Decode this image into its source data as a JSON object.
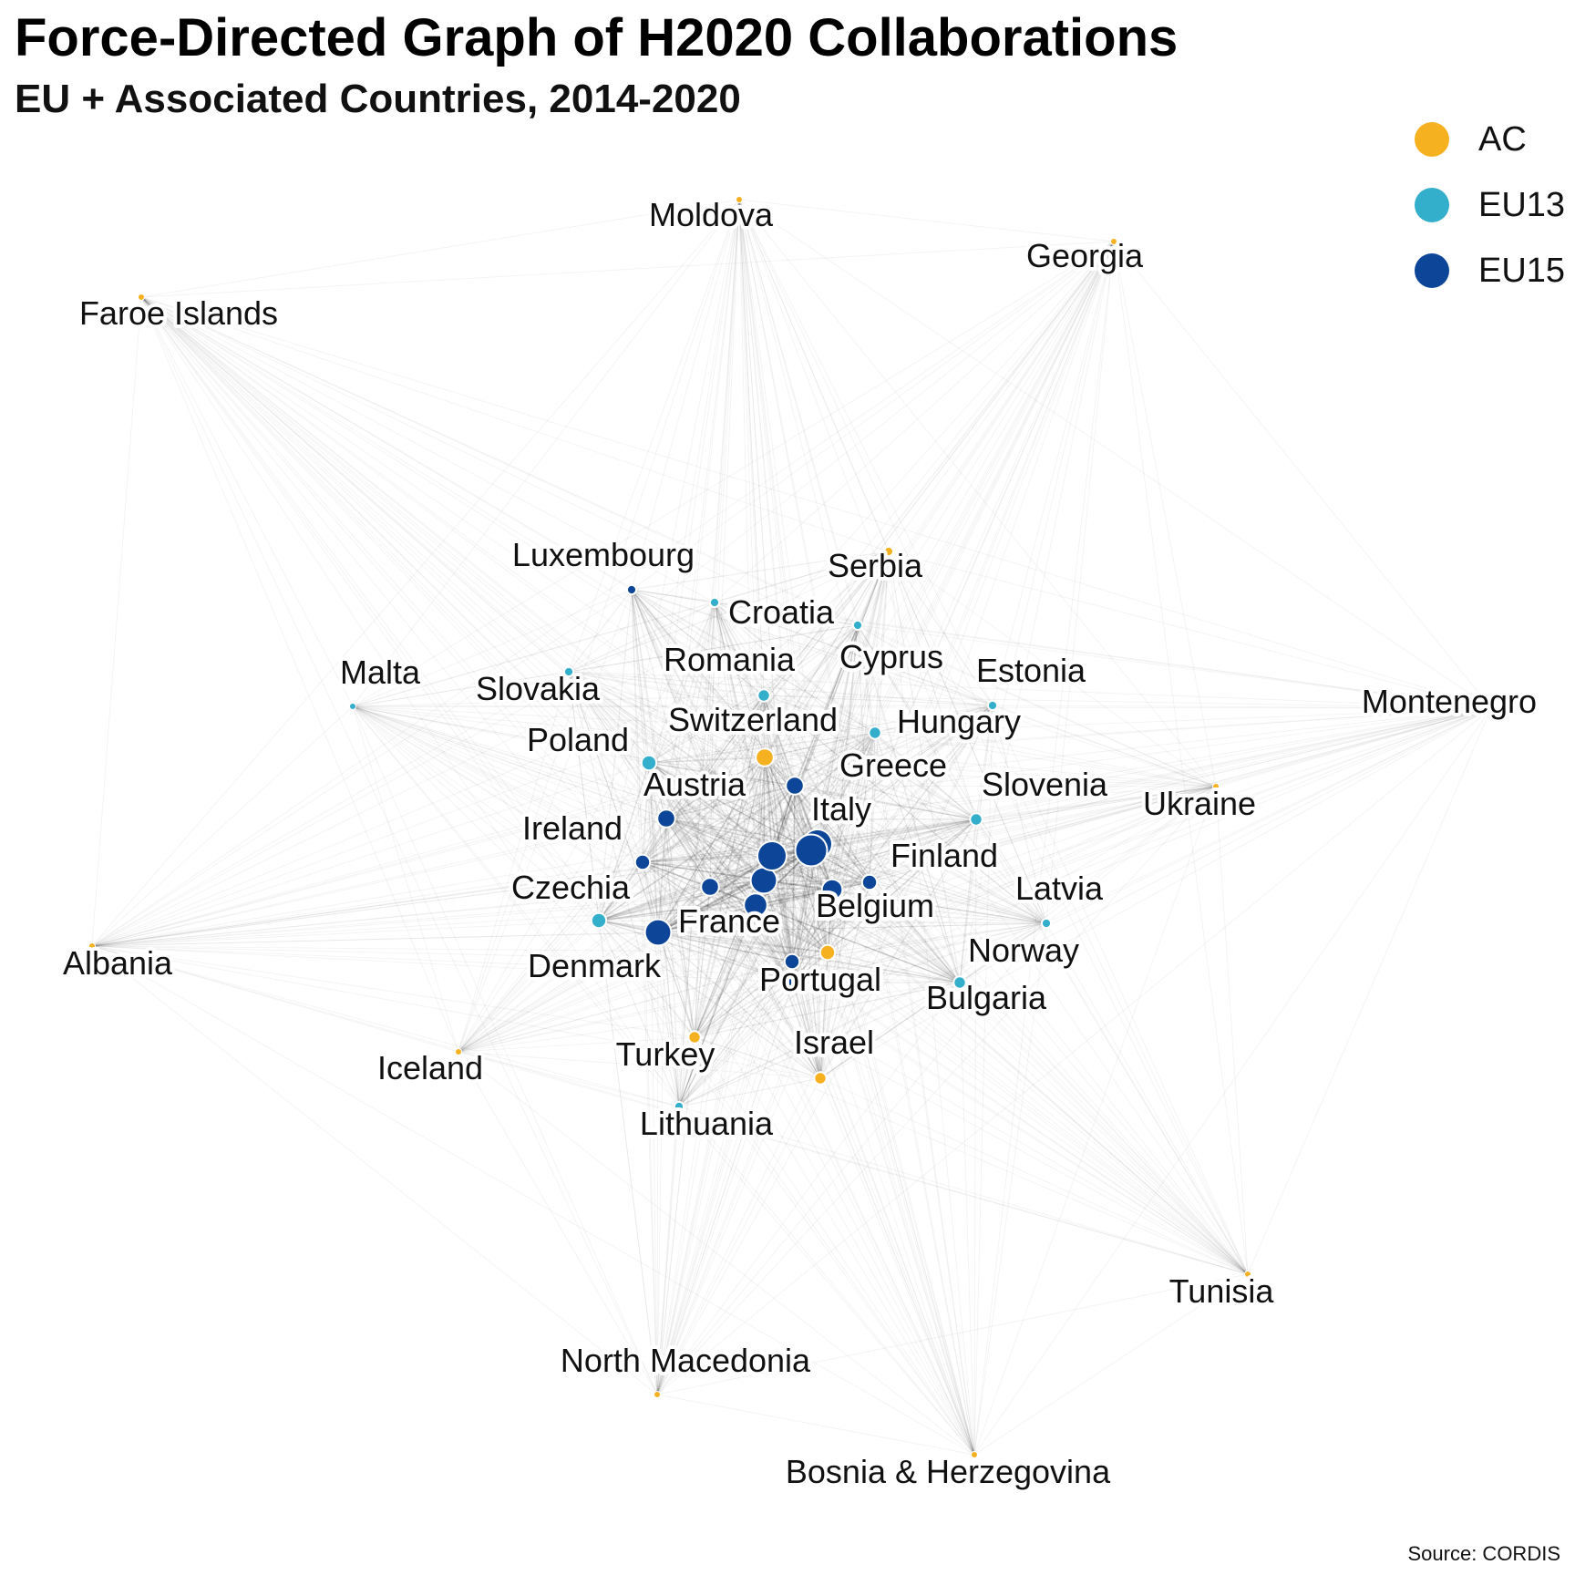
{
  "chart_data": {
    "type": "network",
    "title": "Force-Directed Graph of H2020 Collaborations",
    "subtitle": "EU + Associated Countries, 2014-2020",
    "source": "Source: CORDIS",
    "legend_placement": "top-right",
    "groups": [
      {
        "name": "AC",
        "color": "#F6B120"
      },
      {
        "name": "EU13",
        "color": "#33AFCB"
      },
      {
        "name": "EU15",
        "color": "#0D4698"
      }
    ],
    "nodes": [
      {
        "label": "Moldova",
        "group": "AC",
        "weight": 1
      },
      {
        "label": "Georgia",
        "group": "AC",
        "weight": 1
      },
      {
        "label": "Faroe Islands",
        "group": "AC",
        "weight": 1
      },
      {
        "label": "Luxembourg",
        "group": "EU15",
        "weight": 2
      },
      {
        "label": "Serbia",
        "group": "AC",
        "weight": 2
      },
      {
        "label": "Croatia",
        "group": "EU13",
        "weight": 2
      },
      {
        "label": "Romania",
        "group": "EU13",
        "weight": 3
      },
      {
        "label": "Cyprus",
        "group": "EU13",
        "weight": 2
      },
      {
        "label": "Estonia",
        "group": "EU13",
        "weight": 2
      },
      {
        "label": "Malta",
        "group": "EU13",
        "weight": 1
      },
      {
        "label": "Slovakia",
        "group": "EU13",
        "weight": 2
      },
      {
        "label": "Montenegro",
        "group": "AC",
        "weight": 1
      },
      {
        "label": "Switzerland",
        "group": "AC",
        "weight": 5
      },
      {
        "label": "Hungary",
        "group": "EU13",
        "weight": 3
      },
      {
        "label": "Poland",
        "group": "EU13",
        "weight": 4
      },
      {
        "label": "Greece",
        "group": "EU15",
        "weight": 5
      },
      {
        "label": "Austria",
        "group": "EU15",
        "weight": 5
      },
      {
        "label": "Slovenia",
        "group": "EU13",
        "weight": 3
      },
      {
        "label": "Ukraine",
        "group": "AC",
        "weight": 1
      },
      {
        "label": "Italy",
        "group": "EU15",
        "weight": 9
      },
      {
        "label": "Ireland",
        "group": "EU15",
        "weight": 4
      },
      {
        "label": "Finland",
        "group": "EU15",
        "weight": 4
      },
      {
        "label": "Czechia",
        "group": "EU13",
        "weight": 4
      },
      {
        "label": "Belgium",
        "group": "EU15",
        "weight": 6
      },
      {
        "label": "Latvia",
        "group": "EU13",
        "weight": 2
      },
      {
        "label": "France",
        "group": "EU15",
        "weight": 8
      },
      {
        "label": "Albania",
        "group": "AC",
        "weight": 1
      },
      {
        "label": "Denmark",
        "group": "EU15",
        "weight": 4
      },
      {
        "label": "Norway",
        "group": "AC",
        "weight": 4
      },
      {
        "label": "Portugal",
        "group": "EU15",
        "weight": 4
      },
      {
        "label": "Bulgaria",
        "group": "EU13",
        "weight": 3
      },
      {
        "label": "Israel",
        "group": "AC",
        "weight": 3
      },
      {
        "label": "Turkey",
        "group": "AC",
        "weight": 3
      },
      {
        "label": "Iceland",
        "group": "AC",
        "weight": 1
      },
      {
        "label": "Lithuania",
        "group": "EU13",
        "weight": 2
      },
      {
        "label": "Tunisia",
        "group": "AC",
        "weight": 1
      },
      {
        "label": "North Macedonia",
        "group": "AC",
        "weight": 1
      },
      {
        "label": "Bosnia & Herzegovina",
        "group": "AC",
        "weight": 1
      },
      {
        "label": "",
        "group": "EU15",
        "weight": 10
      },
      {
        "label": "",
        "group": "EU15",
        "weight": 9
      },
      {
        "label": "",
        "group": "EU15",
        "weight": 8
      },
      {
        "label": "",
        "group": "EU15",
        "weight": 7
      },
      {
        "label": "",
        "group": "EU15",
        "weight": 5
      }
    ]
  }
}
